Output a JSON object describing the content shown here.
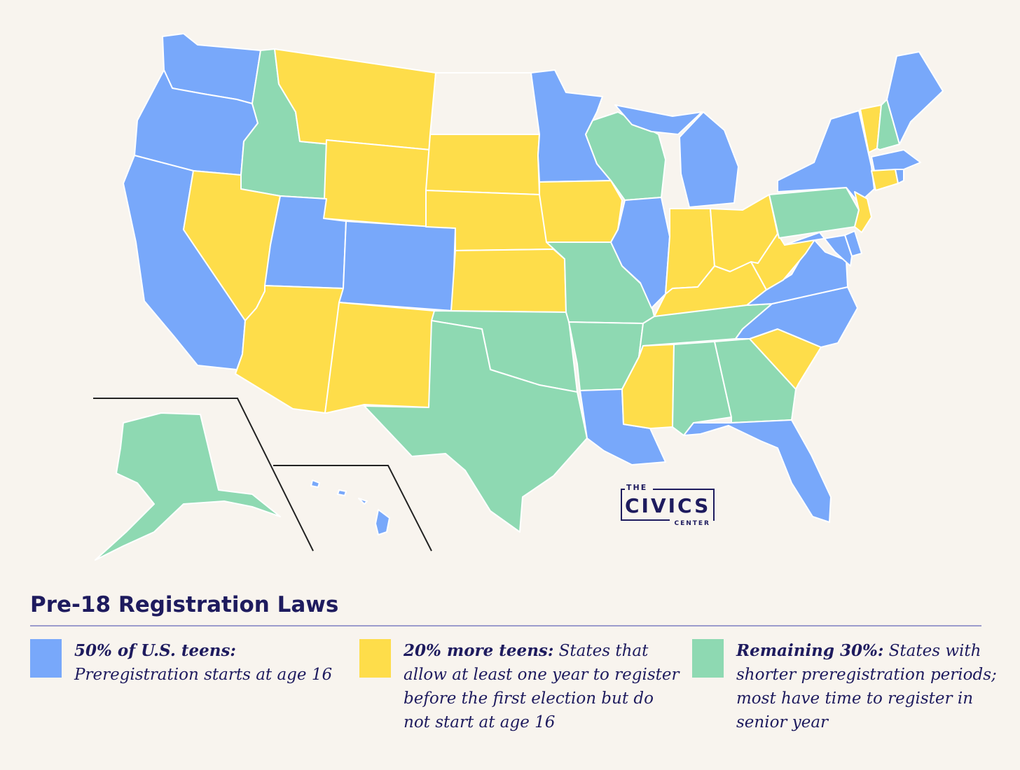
{
  "colors": {
    "background": "#f8f4ee",
    "group_16": "#78a8fa",
    "group_more": "#fedd4a",
    "group_remaining": "#8ed9b2",
    "no_data": "#f8f4ee",
    "text": "#1e1b5e"
  },
  "logo": {
    "top": "THE",
    "main": "CIVICS",
    "bottom": "CENTER"
  },
  "legend": {
    "title": "Pre-18 Registration Laws",
    "items": [
      {
        "bold": "50% of U.S. teens:",
        "text": "Preregistration starts at age 16",
        "color": "#78a8fa"
      },
      {
        "bold": "20% more teens:",
        "text": "States that allow at least one year to register before the first election but do not start at age 16",
        "color": "#fedd4a"
      },
      {
        "bold": "Remaining 30%:",
        "text": "States with shorter preregistration periods; most have time to register in senior year",
        "color": "#8ed9b2"
      }
    ]
  },
  "map": {
    "groups": {
      "age_16": [
        "WA",
        "OR",
        "CA",
        "UT",
        "CO",
        "MN",
        "IL",
        "MI",
        "NY",
        "MA",
        "ME",
        "VA",
        "NC",
        "DE",
        "MD",
        "RI",
        "LA",
        "FL",
        "HI"
      ],
      "one_year": [
        "MT",
        "WY",
        "SD",
        "NE",
        "KS",
        "IA",
        "NV",
        "AZ",
        "NM",
        "IN",
        "OH",
        "KY",
        "WV",
        "SC",
        "MS",
        "VT",
        "CT",
        "NJ"
      ],
      "remaining": [
        "ID",
        "WI",
        "MO",
        "OK",
        "AR",
        "TX",
        "TN",
        "AL",
        "GA",
        "PA",
        "NH",
        "AK"
      ],
      "no_color": [
        "ND"
      ]
    }
  }
}
